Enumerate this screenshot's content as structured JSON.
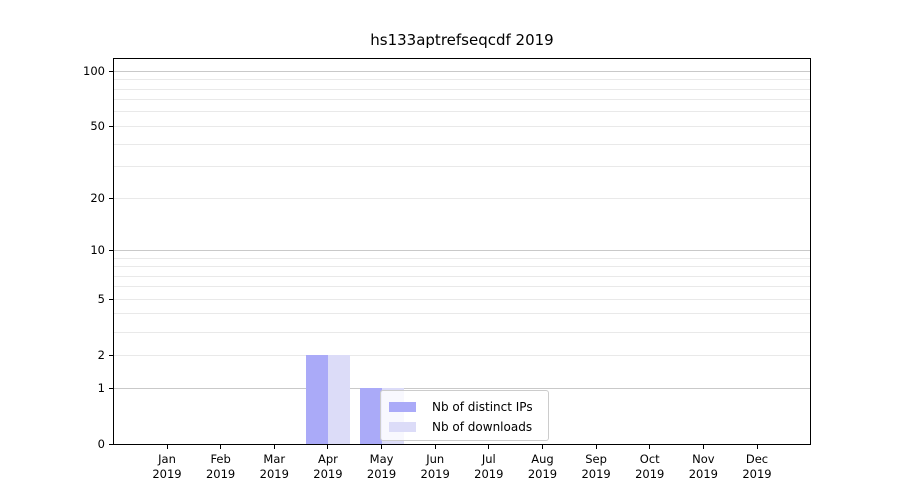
{
  "chart_data": {
    "type": "bar",
    "title": "hs133aptrefseqcdf 2019",
    "year_label": "2019",
    "categories": [
      "Jan",
      "Feb",
      "Mar",
      "Apr",
      "May",
      "Jun",
      "Jul",
      "Aug",
      "Sep",
      "Oct",
      "Nov",
      "Dec"
    ],
    "series": [
      {
        "name": "Nb of distinct IPs",
        "color": "#aaaaf8",
        "values": [
          0,
          0,
          0,
          2,
          1,
          0,
          0,
          0,
          0,
          0,
          0,
          0
        ]
      },
      {
        "name": "Nb of downloads",
        "color": "#dcdcf8",
        "values": [
          0,
          0,
          0,
          2,
          1,
          0,
          0,
          0,
          0,
          0,
          0,
          0
        ]
      }
    ],
    "y_axis": {
      "scale": "log1p",
      "tick_labels": [
        0,
        1,
        2,
        5,
        10,
        20,
        50,
        100
      ],
      "major_gridlines": [
        1,
        10,
        100
      ],
      "minor_gridlines": [
        2,
        3,
        4,
        5,
        6,
        7,
        8,
        9,
        20,
        30,
        40,
        50,
        60,
        70,
        80,
        90
      ],
      "range_max": 120
    },
    "grid": "horizontal",
    "legend_position": "center",
    "colors": {
      "major_grid": "#c9c9c9",
      "minor_grid": "#e9e9e9",
      "spine": "#000000",
      "text": "#000000"
    }
  }
}
